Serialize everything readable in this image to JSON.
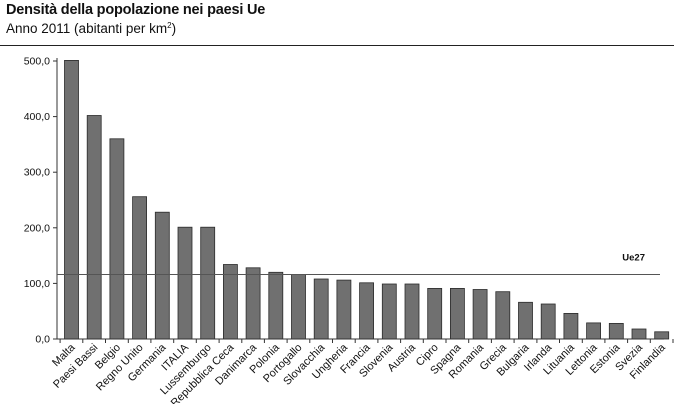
{
  "header": {
    "title": "Densità della popolazione nei paesi Ue",
    "subtitle": "Anno 2011 (abitanti per km",
    "subtitle_sup": "2",
    "subtitle_end": ")"
  },
  "chart_data": {
    "type": "bar",
    "title": "Densità della popolazione nei paesi Ue",
    "subtitle": "Anno 2011 (abitanti per km²)",
    "categories": [
      "Malta",
      "Paesi Bassi",
      "Belgio",
      "Regno Unito",
      "Germania",
      "ITALIA",
      "Lussemburgo",
      "Repubblica Ceca",
      "Danimarca",
      "Polonia",
      "Portogallo",
      "Slovacchia",
      "Ungheria",
      "Francia",
      "Slovenia",
      "Austria",
      "Cipro",
      "Spagna",
      "Romania",
      "Grecia",
      "Bulgaria",
      "Irlanda",
      "Lituania",
      "Lettonia",
      "Estonia",
      "Svezia",
      "Finlandia"
    ],
    "values": [
      501,
      402,
      360,
      256,
      228,
      201,
      201,
      134,
      128,
      120,
      116,
      108,
      106,
      101,
      99,
      99,
      91,
      91,
      89,
      85,
      66,
      63,
      46,
      29,
      28,
      18,
      13
    ],
    "ylim": [
      0,
      500
    ],
    "yticks": [
      "0,0",
      "100,0",
      "200,0",
      "300,0",
      "400,0",
      "500,0"
    ],
    "ytick_values": [
      0,
      100,
      200,
      300,
      400,
      500
    ],
    "reference_line": {
      "label": "Ue27",
      "value": 116
    },
    "colors": {
      "bar": "#707070",
      "bar_stroke": "#2b2b2b",
      "axis": "#333333"
    }
  }
}
